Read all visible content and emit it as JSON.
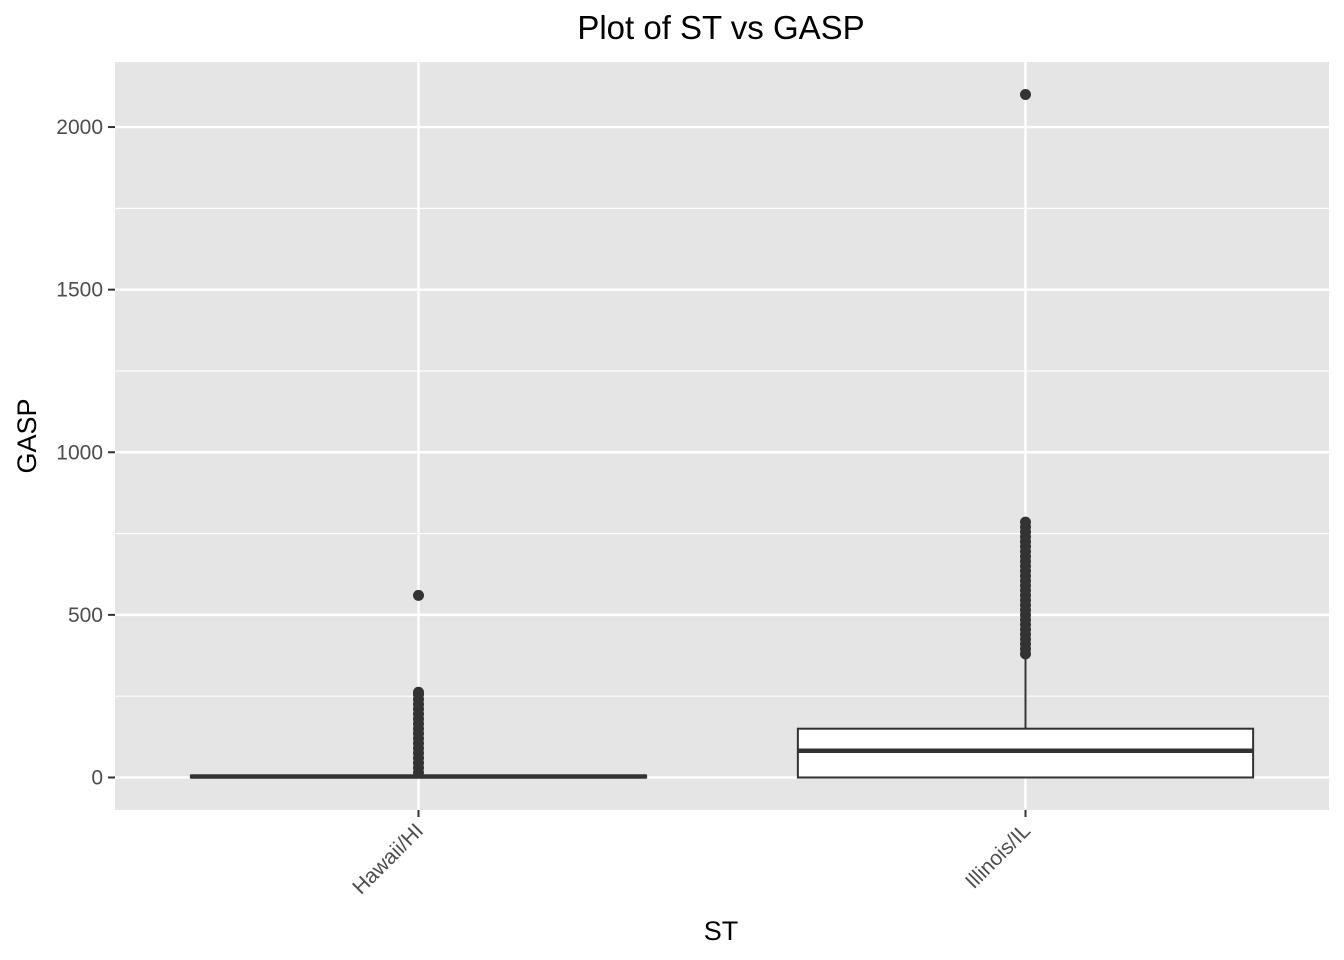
{
  "chart_data": {
    "type": "boxplot",
    "title": "Plot of ST vs GASP",
    "xlabel": "ST",
    "ylabel": "GASP",
    "categories": [
      "Hawaii/HI",
      "Illinois/IL"
    ],
    "ylim": [
      -100,
      2200
    ],
    "yticks": [
      0,
      500,
      1000,
      1500,
      2000
    ],
    "ytick_labels": [
      "0",
      "500",
      "1000",
      "1500",
      "2000"
    ],
    "grid": true,
    "legend": "none",
    "series": [
      {
        "category": "Hawaii/HI",
        "stats": {
          "min": 0,
          "q1": 0,
          "median": 3,
          "q3": 6,
          "max": 12
        },
        "outliers": [
          15,
          30,
          45,
          60,
          75,
          90,
          105,
          120,
          135,
          150,
          165,
          180,
          195,
          210,
          225,
          240,
          255,
          262,
          560
        ]
      },
      {
        "category": "Illinois/IL",
        "stats": {
          "min": 0,
          "q1": 0,
          "median": 82,
          "q3": 150,
          "max": 370
        },
        "outliers": [
          380,
          395,
          410,
          425,
          440,
          455,
          470,
          485,
          500,
          515,
          530,
          545,
          560,
          575,
          590,
          605,
          620,
          635,
          650,
          665,
          680,
          695,
          710,
          725,
          740,
          755,
          770,
          785,
          2100
        ]
      }
    ],
    "colors": {
      "panel": "#e5e5e5",
      "grid": "#ffffff",
      "box_line": "#333333",
      "box_fill": "#ffffff",
      "point": "#333333",
      "tick_label": "#4d4d4d"
    }
  }
}
